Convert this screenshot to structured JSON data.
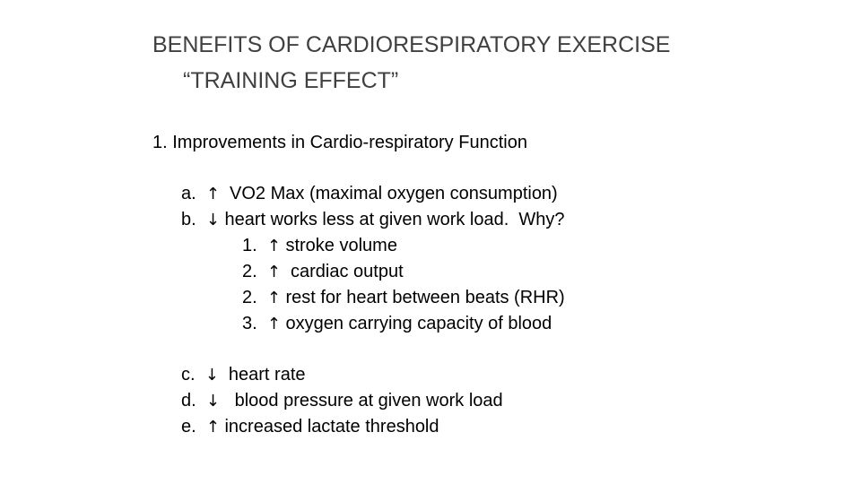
{
  "title": {
    "line1": "BENEFITS OF CARDIORESPIRATORY EXERCISE",
    "line2": "“TRAINING EFFECT”"
  },
  "heading": "1. Improvements in Cardio-respiratory Function",
  "items_top": [
    {
      "marker": "a.",
      "arrow": "↑",
      "text": " VO2 Max (maximal oxygen consumption)"
    },
    {
      "marker": "b.",
      "arrow": "↓",
      "text": "heart works less at given work load.  Why?"
    }
  ],
  "sub_items": [
    {
      "marker": "1.",
      "arrow": "↑",
      "text": "stroke volume"
    },
    {
      "marker": "2.",
      "arrow": "↑",
      "text": " cardiac output"
    },
    {
      "marker": "2.",
      "arrow": "↑",
      "text": "rest for heart between beats (RHR)"
    },
    {
      "marker": "3.",
      "arrow": "↑",
      "text": "oxygen carrying capacity of blood"
    }
  ],
  "items_bottom": [
    {
      "marker": "c.",
      "arrow": "↓",
      "text": " heart rate"
    },
    {
      "marker": "d.",
      "arrow": "↓",
      "text": "  blood pressure at given work load"
    },
    {
      "marker": "e.",
      "arrow": "↑",
      "text": "increased lactate threshold"
    }
  ]
}
